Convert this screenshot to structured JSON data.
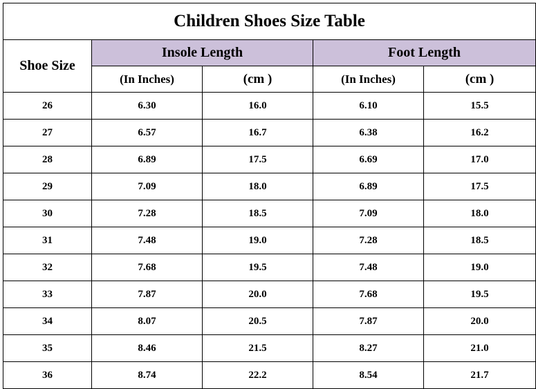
{
  "table": {
    "title": "Children Shoes Size Table",
    "shoe_size_header": "Shoe Size",
    "groups": {
      "insole": {
        "label": "Insole Length",
        "inch_label": "(In Inches)",
        "cm_label": "(cm )"
      },
      "foot": {
        "label": "Foot Length",
        "inch_label": "(In Inches)",
        "cm_label": "(cm )"
      }
    },
    "header_color": "#ccc0da",
    "rows": [
      {
        "size": "26",
        "insole_in": "6.30",
        "insole_cm": "16.0",
        "foot_in": "6.10",
        "foot_cm": "15.5"
      },
      {
        "size": "27",
        "insole_in": "6.57",
        "insole_cm": "16.7",
        "foot_in": "6.38",
        "foot_cm": "16.2"
      },
      {
        "size": "28",
        "insole_in": "6.89",
        "insole_cm": "17.5",
        "foot_in": "6.69",
        "foot_cm": "17.0"
      },
      {
        "size": "29",
        "insole_in": "7.09",
        "insole_cm": "18.0",
        "foot_in": "6.89",
        "foot_cm": "17.5"
      },
      {
        "size": "30",
        "insole_in": "7.28",
        "insole_cm": "18.5",
        "foot_in": "7.09",
        "foot_cm": "18.0"
      },
      {
        "size": "31",
        "insole_in": "7.48",
        "insole_cm": "19.0",
        "foot_in": "7.28",
        "foot_cm": "18.5"
      },
      {
        "size": "32",
        "insole_in": "7.68",
        "insole_cm": "19.5",
        "foot_in": "7.48",
        "foot_cm": "19.0"
      },
      {
        "size": "33",
        "insole_in": "7.87",
        "insole_cm": "20.0",
        "foot_in": "7.68",
        "foot_cm": "19.5"
      },
      {
        "size": "34",
        "insole_in": "8.07",
        "insole_cm": "20.5",
        "foot_in": "7.87",
        "foot_cm": "20.0"
      },
      {
        "size": "35",
        "insole_in": "8.46",
        "insole_cm": "21.5",
        "foot_in": "8.27",
        "foot_cm": "21.0"
      },
      {
        "size": "36",
        "insole_in": "8.74",
        "insole_cm": "22.2",
        "foot_in": "8.54",
        "foot_cm": "21.7"
      }
    ]
  }
}
